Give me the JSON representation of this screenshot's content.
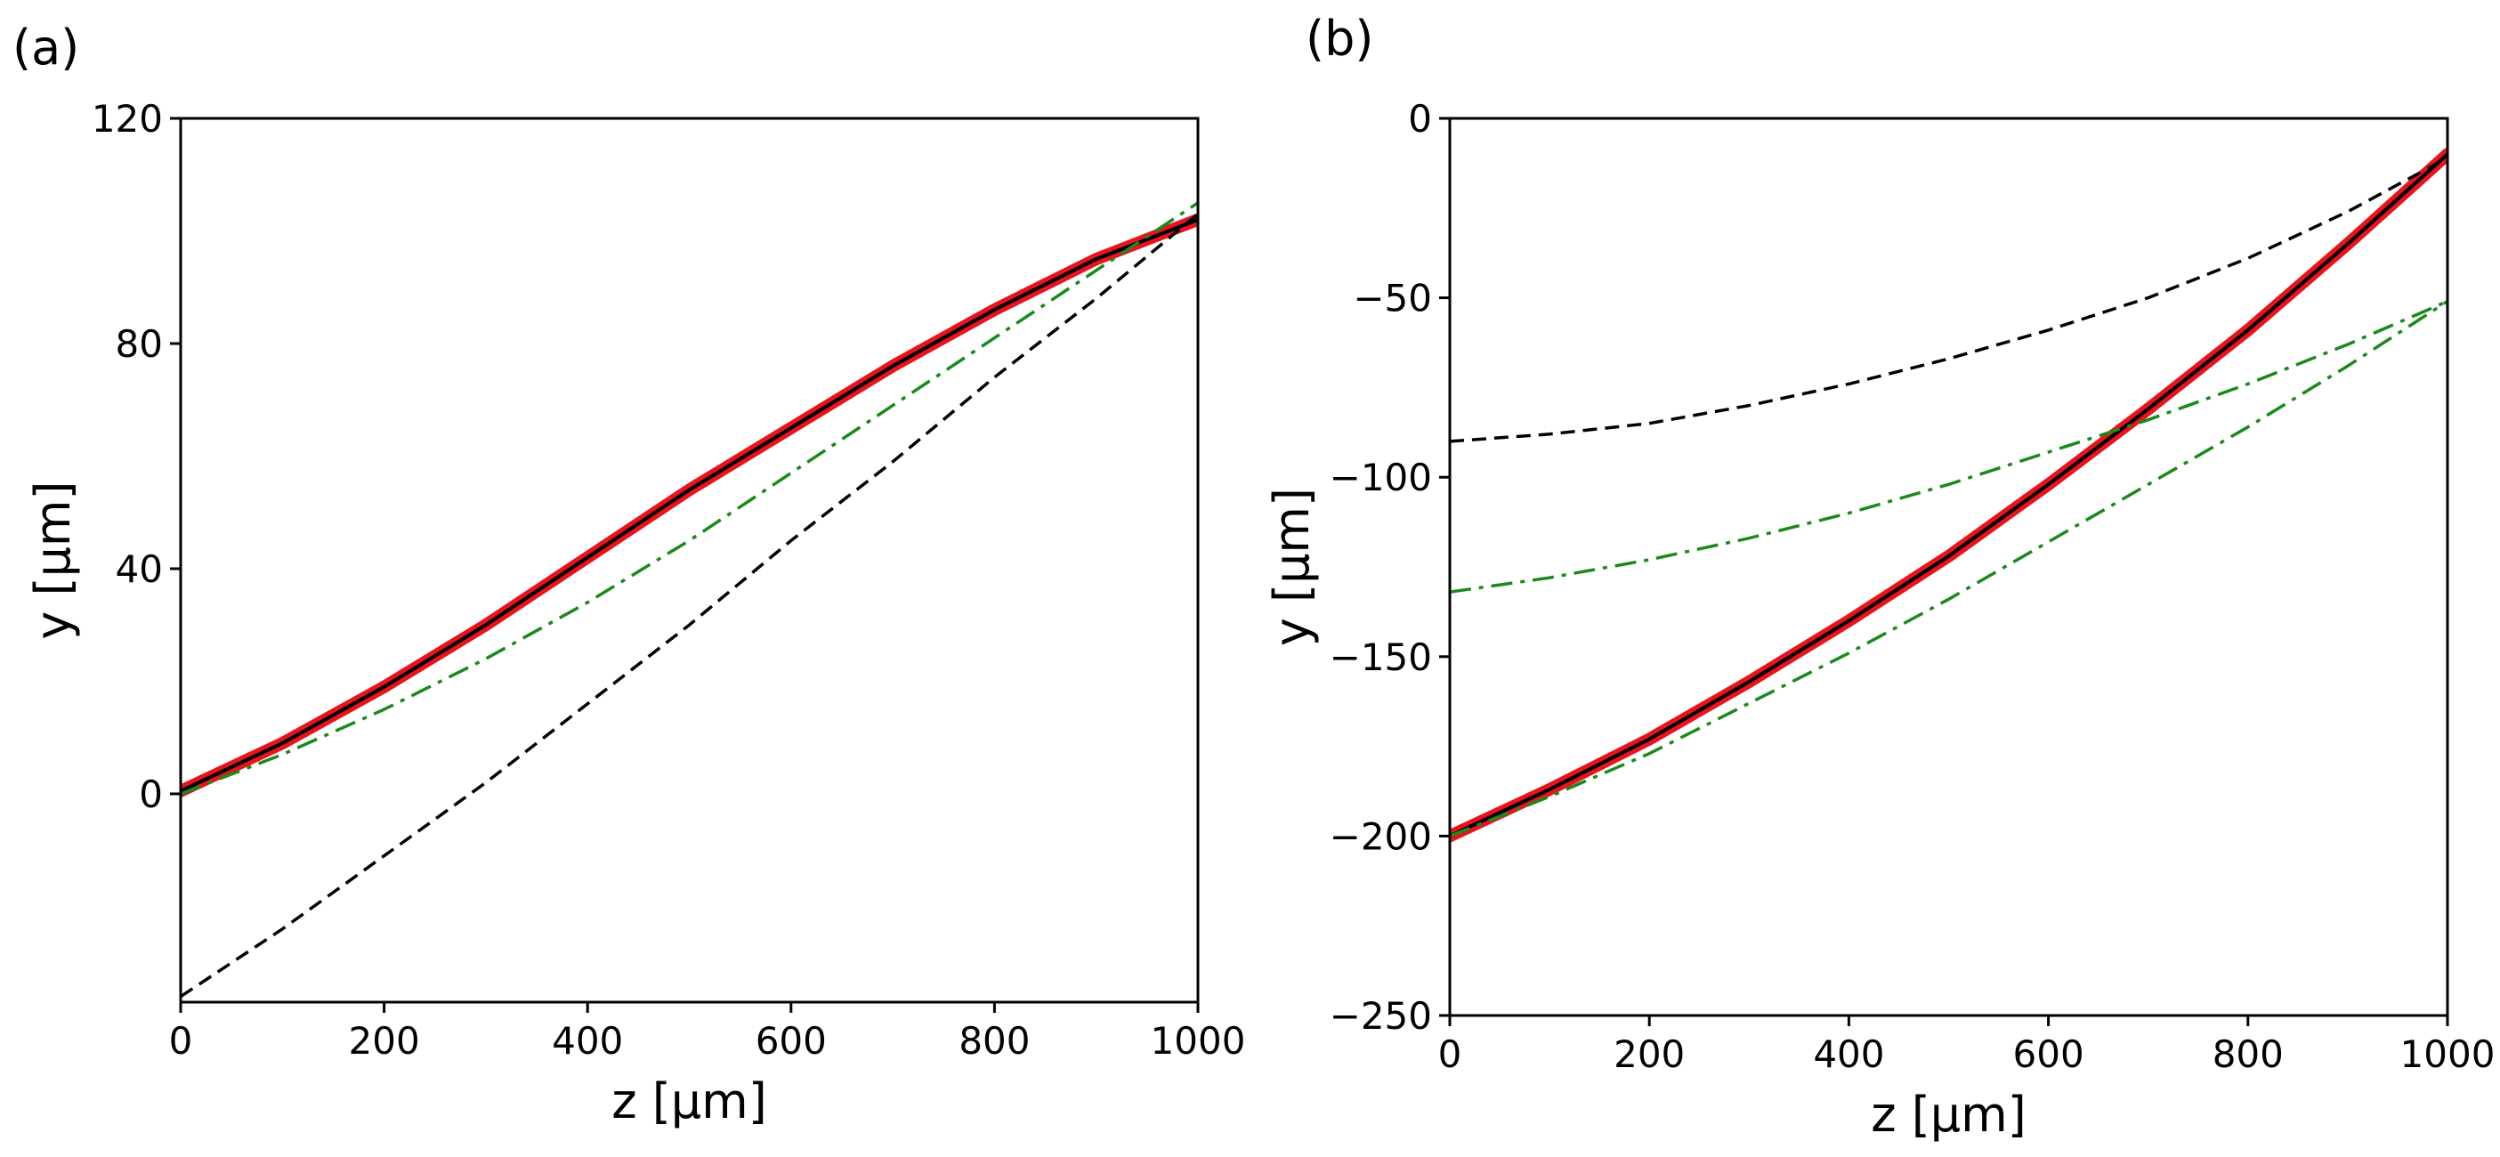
{
  "chart_data": [
    {
      "type": "line",
      "panel_label": "(a)",
      "xlabel": "z [μm]",
      "ylabel": "y [μm]",
      "xlim": [
        0,
        1000
      ],
      "ylim": [
        -37,
        120
      ],
      "xticks": [
        0,
        200,
        400,
        600,
        800,
        1000
      ],
      "yticks": [
        0,
        40,
        80,
        120
      ],
      "xtick_labels": [
        "0",
        "200",
        "400",
        "600",
        "800",
        "1000"
      ],
      "ytick_labels": [
        "0",
        "40",
        "80",
        "120"
      ],
      "grid": false,
      "series": [
        {
          "name": "red-solid",
          "color": "#e8131b",
          "style": "solid-thick",
          "x": [
            0,
            100,
            200,
            300,
            400,
            500,
            600,
            700,
            800,
            900,
            1000
          ],
          "y": [
            0.5,
            9,
            19,
            30,
            42,
            54,
            65,
            76,
            86,
            95,
            102
          ]
        },
        {
          "name": "black-solid",
          "color": "#000000",
          "style": "solid",
          "x": [
            0,
            100,
            200,
            300,
            400,
            500,
            600,
            700,
            800,
            900,
            1000
          ],
          "y": [
            0.5,
            9,
            19,
            30,
            42,
            54,
            65,
            76,
            86,
            95,
            102
          ]
        },
        {
          "name": "green-dashdot",
          "color": "#1a8a1a",
          "style": "dashdot",
          "x": [
            0,
            100,
            200,
            300,
            400,
            500,
            600,
            700,
            800,
            900,
            1000
          ],
          "y": [
            0,
            7,
            15,
            24,
            34,
            45,
            57,
            69,
            81,
            93,
            105
          ]
        },
        {
          "name": "black-dashed",
          "color": "#000000",
          "style": "dashed",
          "x": [
            0,
            100,
            200,
            300,
            400,
            500,
            600,
            700,
            800,
            900,
            1000
          ],
          "y": [
            -36,
            -24,
            -11,
            2,
            16,
            30,
            45,
            59,
            74,
            88,
            103
          ]
        }
      ]
    },
    {
      "type": "line",
      "panel_label": "(b)",
      "xlabel": "z [μm]",
      "ylabel": "y [μm]",
      "xlim": [
        0,
        1000
      ],
      "ylim": [
        -250,
        0
      ],
      "xticks": [
        0,
        200,
        400,
        600,
        800,
        1000
      ],
      "yticks": [
        -250,
        -200,
        -150,
        -100,
        -50,
        0
      ],
      "xtick_labels": [
        "0",
        "200",
        "400",
        "600",
        "800",
        "1000"
      ],
      "ytick_labels": [
        "−250",
        "−200",
        "−150",
        "−100",
        "−50",
        "0"
      ],
      "grid": false,
      "series": [
        {
          "name": "red-solid",
          "color": "#e8131b",
          "style": "solid-thick",
          "x": [
            0,
            100,
            200,
            300,
            400,
            500,
            600,
            700,
            800,
            900,
            1000
          ],
          "y": [
            -200,
            -187,
            -173,
            -157,
            -140,
            -122,
            -102,
            -81,
            -59,
            -35,
            -10
          ]
        },
        {
          "name": "black-solid",
          "color": "#000000",
          "style": "solid",
          "x": [
            0,
            100,
            200,
            300,
            400,
            500,
            600,
            700,
            800,
            900,
            1000
          ],
          "y": [
            -200,
            -187,
            -173,
            -157,
            -140,
            -122,
            -102,
            -81,
            -59,
            -35,
            -10
          ]
        },
        {
          "name": "green-dashdot-lower",
          "color": "#1a8a1a",
          "style": "dashdot",
          "x": [
            0,
            100,
            200,
            300,
            400,
            500,
            600,
            700,
            800,
            900,
            1000
          ],
          "y": [
            -200,
            -189,
            -177,
            -163,
            -149,
            -134,
            -118,
            -102,
            -86,
            -69,
            -51
          ]
        },
        {
          "name": "green-dashdot-upper",
          "color": "#1a8a1a",
          "style": "dashdot",
          "x": [
            0,
            100,
            200,
            300,
            400,
            500,
            600,
            700,
            800,
            900,
            1000
          ],
          "y": [
            -132,
            -128,
            -123,
            -117,
            -110,
            -102,
            -93,
            -84,
            -74,
            -63,
            -51
          ]
        },
        {
          "name": "black-dashed",
          "color": "#000000",
          "style": "dashed",
          "x": [
            0,
            100,
            200,
            300,
            400,
            500,
            600,
            700,
            800,
            900,
            1000
          ],
          "y": [
            -90,
            -88,
            -85,
            -80,
            -74,
            -67,
            -59,
            -50,
            -39,
            -26,
            -11
          ]
        }
      ]
    }
  ]
}
